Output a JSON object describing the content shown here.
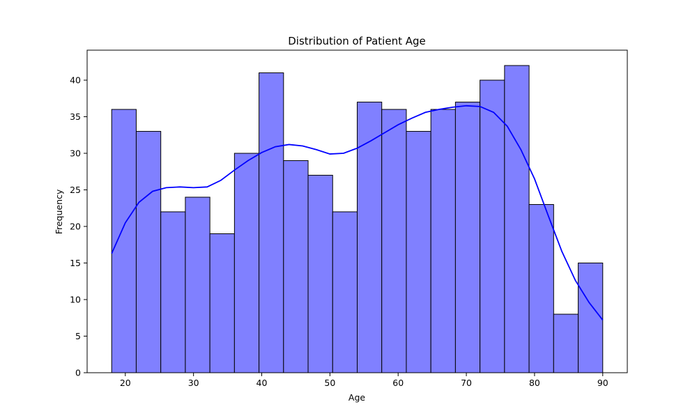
{
  "chart_data": {
    "type": "bar",
    "title": "Distribution of Patient Age",
    "xlabel": "Age",
    "ylabel": "Frequency",
    "xlim": [
      14.4,
      93.6
    ],
    "ylim": [
      0,
      44.1
    ],
    "x_ticks": [
      20,
      30,
      40,
      50,
      60,
      70,
      80,
      90
    ],
    "y_ticks": [
      0,
      5,
      10,
      15,
      20,
      25,
      30,
      35,
      40
    ],
    "bin_edges": [
      18,
      21.6,
      25.2,
      28.8,
      32.4,
      36,
      39.6,
      43.2,
      46.8,
      50.4,
      54,
      57.6,
      61.2,
      64.8,
      68.4,
      72,
      75.6,
      79.2,
      82.8,
      86.4,
      90
    ],
    "values": [
      36,
      33,
      22,
      24,
      19,
      30,
      41,
      29,
      27,
      22,
      37,
      36,
      33,
      36,
      37,
      40,
      42,
      23,
      8,
      15
    ],
    "kde": {
      "x": [
        18,
        20,
        22,
        24,
        26,
        28,
        30,
        32,
        34,
        36,
        38,
        40,
        42,
        44,
        46,
        48,
        50,
        52,
        54,
        56,
        58,
        60,
        62,
        64,
        66,
        68,
        70,
        72,
        74,
        76,
        78,
        80,
        82,
        84,
        86,
        88,
        90
      ],
      "y": [
        16.3,
        20.5,
        23.3,
        24.8,
        25.3,
        25.4,
        25.3,
        25.4,
        26.3,
        27.7,
        29.0,
        30.1,
        30.9,
        31.2,
        31.0,
        30.5,
        29.9,
        30.0,
        30.7,
        31.7,
        32.8,
        33.9,
        34.8,
        35.6,
        36.0,
        36.3,
        36.5,
        36.4,
        35.6,
        33.7,
        30.5,
        26.5,
        21.5,
        16.6,
        12.6,
        9.6,
        7.2
      ]
    },
    "grid": false,
    "colors": {
      "bar_fill": "#8080ff",
      "bar_edge": "#000000",
      "kde_line": "#0000ff"
    }
  }
}
